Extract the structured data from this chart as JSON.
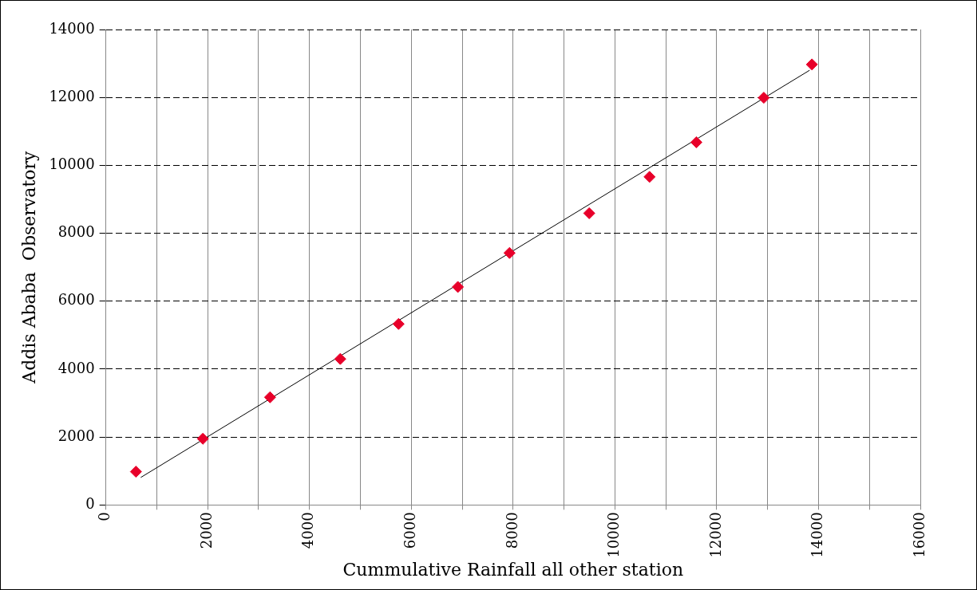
{
  "chart_data": {
    "type": "scatter",
    "xlabel": "Cummulative Rainfall all other station",
    "ylabel": "Addis Ababa  Observatory",
    "x": [
      590,
      1905,
      3225,
      4605,
      5750,
      6915,
      7930,
      9495,
      10680,
      11600,
      12925,
      13870
    ],
    "series": [
      {
        "color": "#e8002a",
        "marker": "diamond",
        "values": [
          980,
          1950,
          3170,
          4300,
          5330,
          6420,
          7420,
          8590,
          9660,
          10680,
          11990,
          12970
        ]
      },
      {
        "type": "line",
        "color": "#000000",
        "marker": "none",
        "line_style": "solid",
        "x": [
          685,
          13825
        ],
        "values": [
          810,
          12800
        ]
      }
    ],
    "xlim": [
      0,
      16000
    ],
    "xticks": [
      0,
      {
        "value": 1000,
        "label": null
      },
      2000,
      {
        "value": 3000,
        "label": null
      },
      4000,
      {
        "value": 5000,
        "label": null
      },
      6000,
      {
        "value": 7000,
        "label": null
      },
      8000,
      {
        "value": 9000,
        "label": null
      },
      10000,
      {
        "value": 11000,
        "label": null
      },
      12000,
      {
        "value": 13000,
        "label": null
      },
      14000,
      {
        "value": 15000,
        "label": null
      },
      16000
    ],
    "ylim": [
      0,
      14000
    ],
    "yticks": [
      0,
      2000,
      4000,
      6000,
      8000,
      10000,
      12000,
      14000
    ],
    "grid": true,
    "legend": false
  }
}
